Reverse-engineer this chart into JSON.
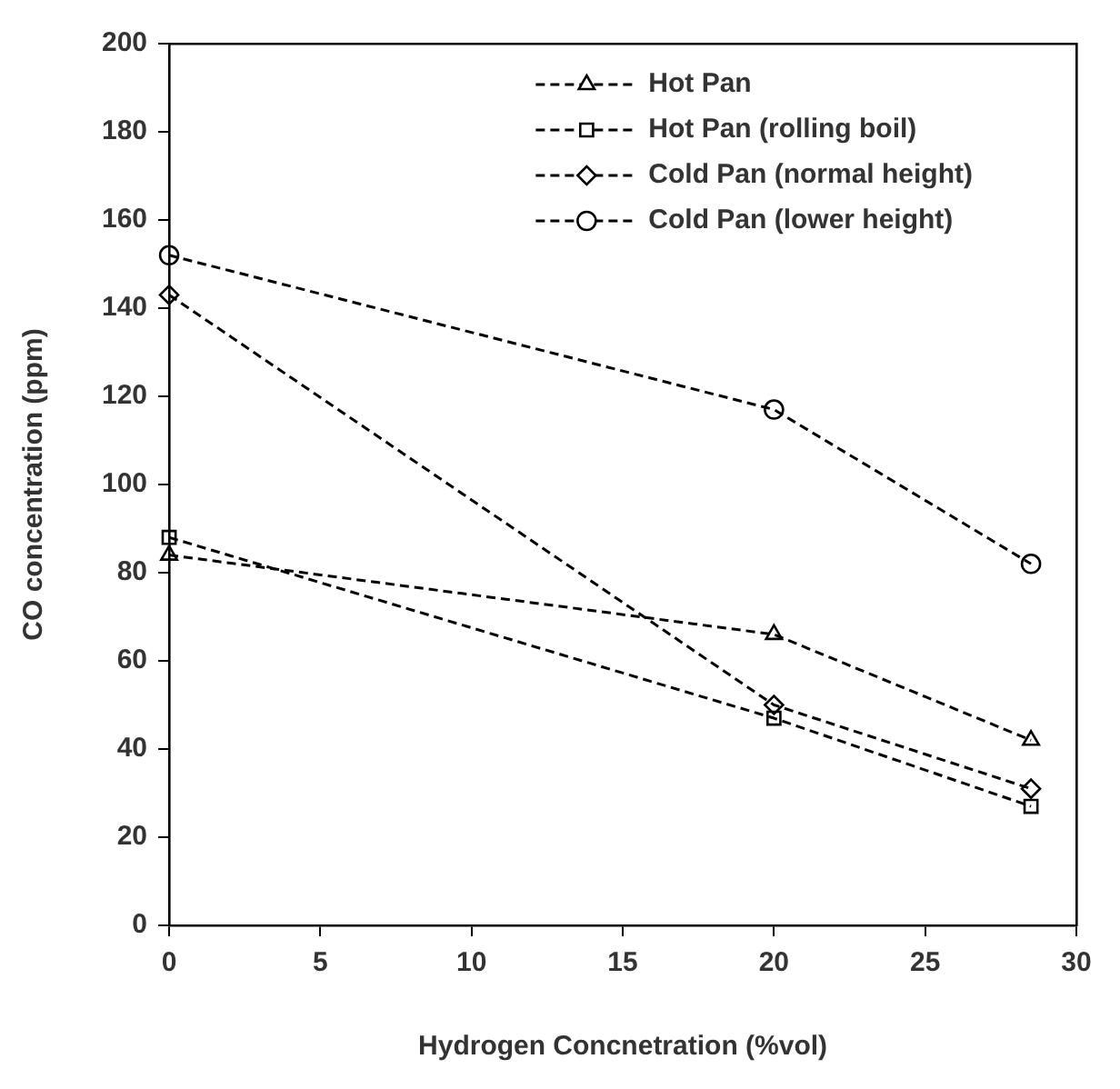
{
  "chart_data": {
    "type": "line",
    "xlabel": "Hydrogen Concnetration (%vol)",
    "ylabel": "CO concentration (ppm)",
    "x": [
      0,
      20,
      28.5
    ],
    "series": [
      {
        "name": "Hot Pan",
        "color": "#000000",
        "marker": "triangle",
        "values": [
          84,
          66,
          42
        ]
      },
      {
        "name": "Hot Pan (rolling boil)",
        "color": "#000000",
        "marker": "square",
        "values": [
          88,
          47,
          27
        ]
      },
      {
        "name": "Cold Pan (normal height)",
        "color": "#000000",
        "marker": "diamond",
        "values": [
          143,
          50,
          31
        ]
      },
      {
        "name": "Cold Pan (lower height)",
        "color": "#000000",
        "marker": "circle",
        "values": [
          152,
          117,
          82
        ]
      }
    ],
    "line_style": "dashed",
    "xlim": [
      0,
      30
    ],
    "xticks": [
      0,
      5,
      10,
      15,
      20,
      25,
      30
    ],
    "ylim": [
      0,
      200
    ],
    "yticks": [
      0,
      20,
      40,
      60,
      80,
      100,
      120,
      140,
      160,
      180,
      200
    ],
    "grid": false,
    "legend": "top right"
  }
}
